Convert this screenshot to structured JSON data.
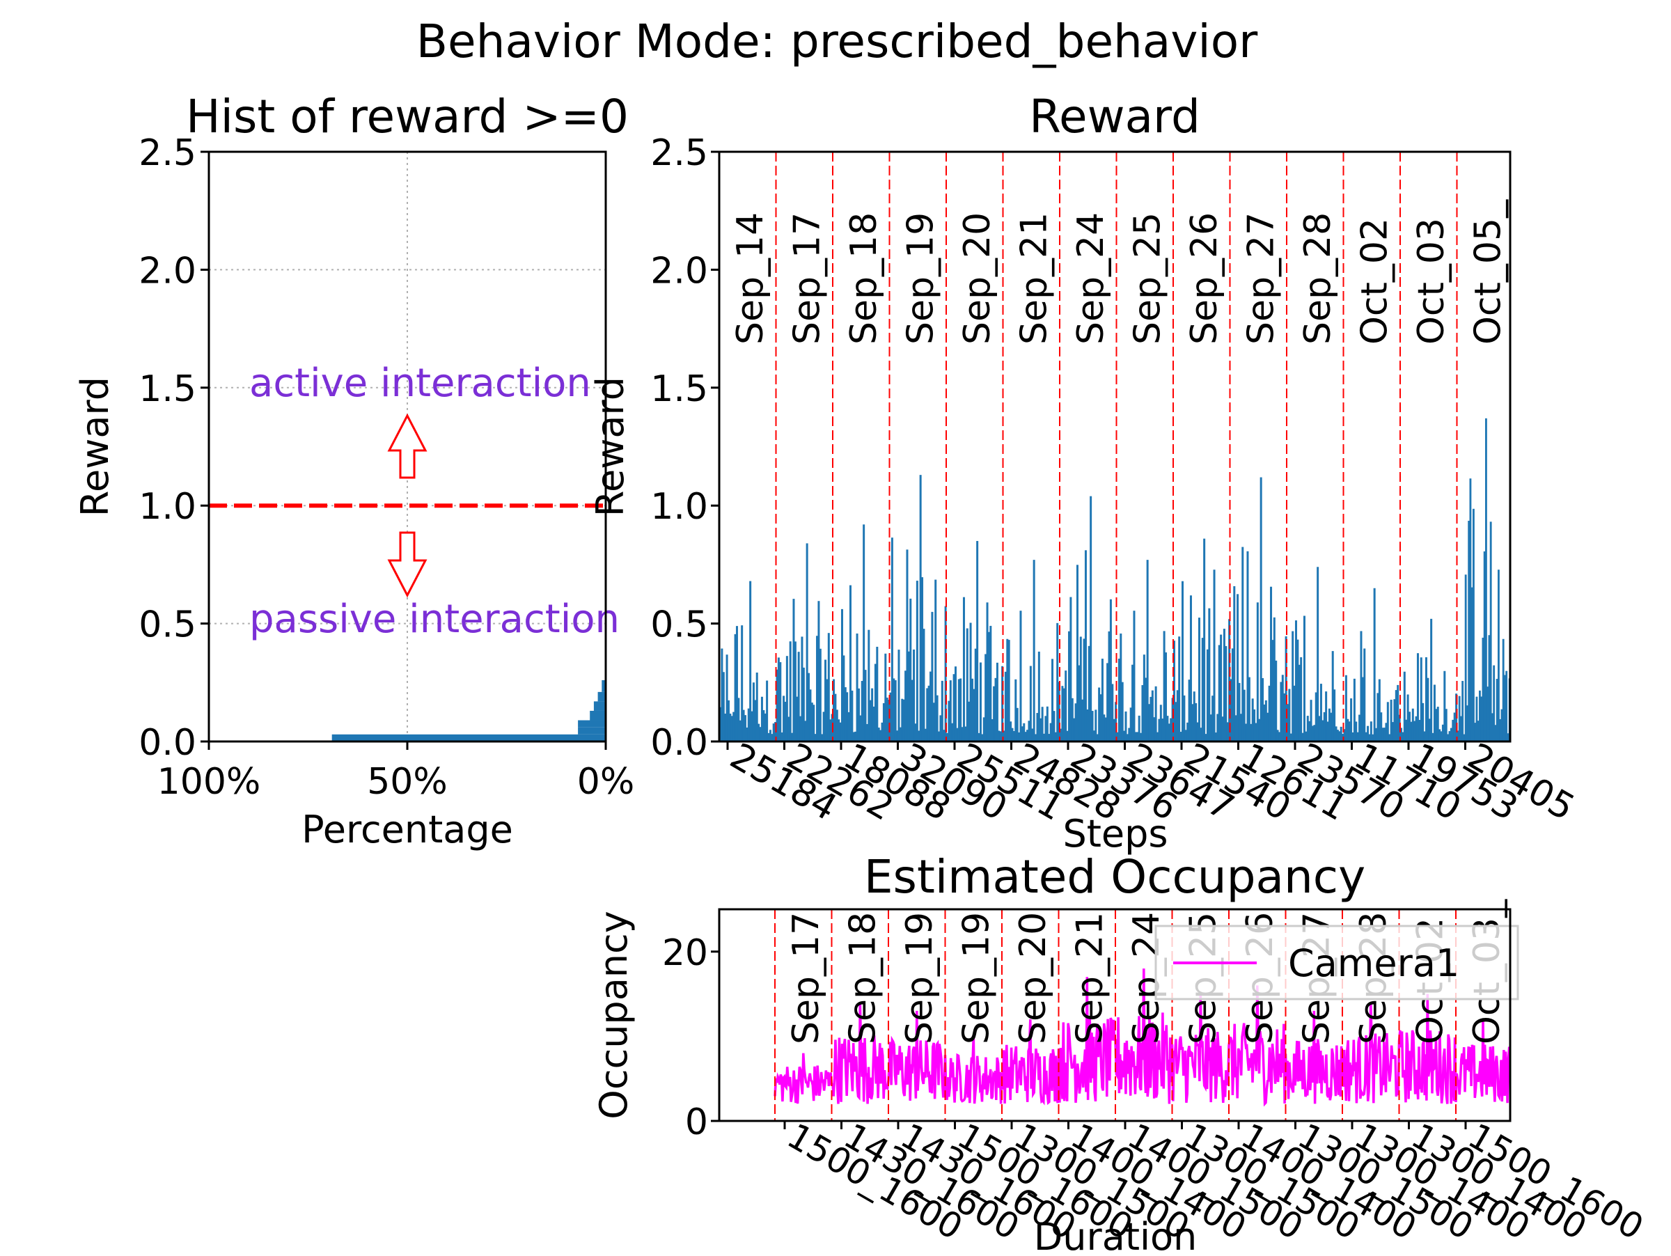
{
  "figure": {
    "suptitle": "Behavior Mode: prescribed_behavior"
  },
  "colors": {
    "bar": "#1f77b4",
    "threshold": "#ff0000",
    "annotation": "#7b2fd6",
    "occupancy": "#ff00ff",
    "date_line": "#ff0000"
  },
  "chart_data": [
    {
      "id": "hist",
      "type": "bar",
      "orientation": "horizontal",
      "title": "Hist of reward >=0",
      "xlabel": "Percentage",
      "ylabel": "Reward",
      "xlim": [
        1.0,
        0.0
      ],
      "ylim": [
        0,
        2.5
      ],
      "xticks": [
        "100%",
        "50%",
        "0%"
      ],
      "yticks": [
        "0.0",
        "0.5",
        "1.0",
        "1.5",
        "2.0",
        "2.5"
      ],
      "grid": true,
      "bins": [
        {
          "y0": 0.0,
          "y1": 0.03,
          "fraction": 0.69
        },
        {
          "y0": 0.03,
          "y1": 0.06,
          "fraction": 0.07
        },
        {
          "y0": 0.06,
          "y1": 0.09,
          "fraction": 0.07
        },
        {
          "y0": 0.09,
          "y1": 0.13,
          "fraction": 0.04
        },
        {
          "y0": 0.13,
          "y1": 0.17,
          "fraction": 0.03
        },
        {
          "y0": 0.17,
          "y1": 0.21,
          "fraction": 0.02
        },
        {
          "y0": 0.21,
          "y1": 0.26,
          "fraction": 0.01
        }
      ],
      "threshold": 1.0,
      "annotations": [
        "active interaction",
        "passive interaction"
      ]
    },
    {
      "id": "reward",
      "type": "bar",
      "title": "Reward",
      "xlabel": "Steps",
      "ylabel": "Reward",
      "ylim": [
        0,
        2.5
      ],
      "yticks": [
        "0.0",
        "0.5",
        "1.0",
        "1.5",
        "2.0",
        "2.5"
      ],
      "dates": [
        "Sep_14",
        "Sep_17",
        "Sep_18",
        "Sep_19",
        "Sep_20",
        "Sep_21",
        "Sep_24",
        "Sep_25",
        "Sep_26",
        "Sep_27",
        "Sep_28",
        "Oct_02",
        "Oct_03",
        "Oct_05_"
      ],
      "xtick_labels": [
        "25184",
        "22262",
        "18088",
        "32090",
        "25511",
        "24828",
        "23376",
        "23647",
        "21540",
        "12611",
        "23570",
        "11710",
        "19753",
        "20405"
      ],
      "peaks": [
        0.68,
        0.84,
        0.92,
        1.13,
        0.85,
        0.77,
        1.04,
        0.77,
        0.86,
        1.12,
        0.74,
        0.65,
        0.52,
        1.37
      ]
    },
    {
      "id": "occupancy",
      "type": "line",
      "title": "Estimated Occupancy",
      "xlabel": "Duration",
      "ylabel": "Occupancy",
      "ylim": [
        0,
        25
      ],
      "yticks": [
        "0",
        "20"
      ],
      "dates": [
        "Sep_17",
        "Sep_18",
        "Sep_19",
        "Sep_19",
        "Sep_20",
        "Sep_21",
        "Sep_24",
        "Sep_25",
        "Sep_26",
        "Sep_27",
        "Sep_28",
        "Oct_02",
        "Oct_03_"
      ],
      "xtick_labels": [
        "1500_1600",
        "1430_1600",
        "1430_1600",
        "1500_1600",
        "1300_1500",
        "1400_1400",
        "1400_1500",
        "1300_1500",
        "1400_1400",
        "1300_1500",
        "1300_1400",
        "1300_1400",
        "1500_1600"
      ],
      "series": [
        {
          "name": "Camera1",
          "peaks": [
            8,
            14,
            13,
            10,
            12,
            17,
            18,
            15,
            16,
            13,
            14,
            15,
            12
          ]
        }
      ]
    }
  ]
}
